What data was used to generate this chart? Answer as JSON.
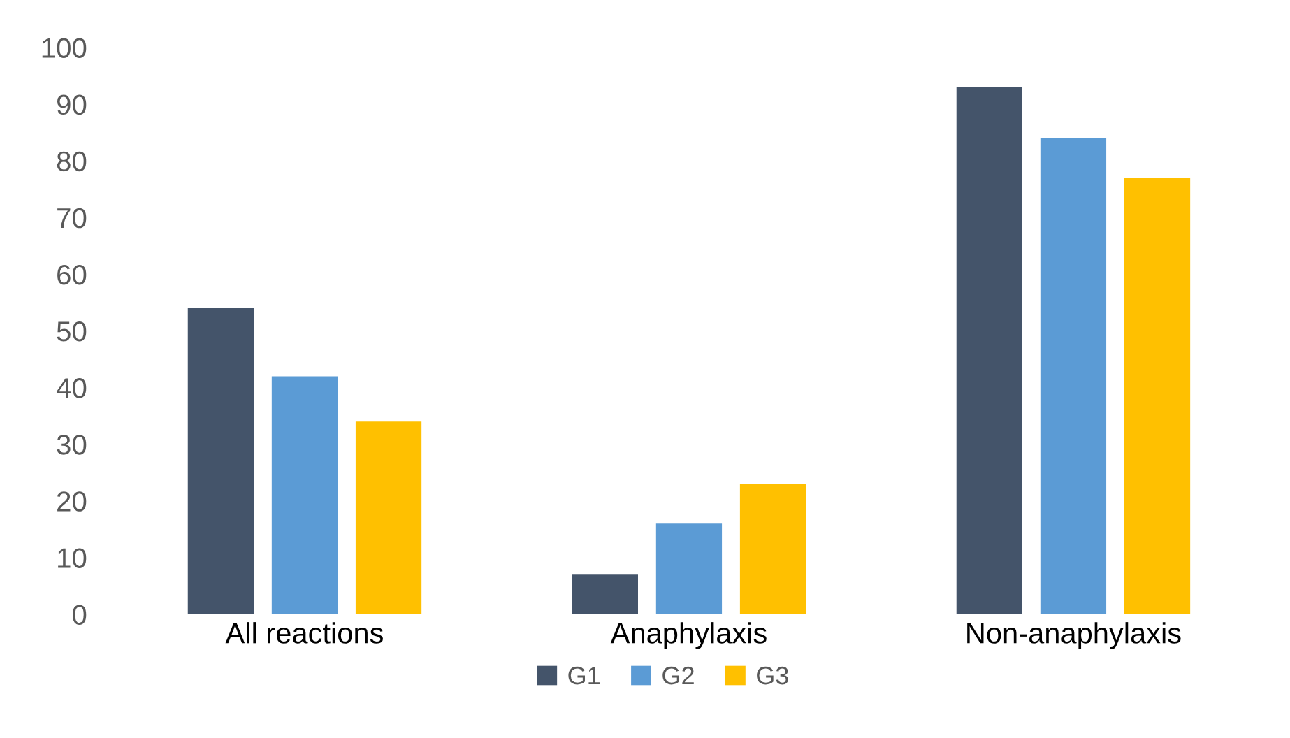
{
  "chart_data": {
    "type": "bar",
    "categories": [
      "All reactions",
      "Anaphylaxis",
      "Non-anaphylaxis"
    ],
    "series": [
      {
        "name": "G1",
        "color": "#44546a",
        "values": [
          54,
          7,
          93
        ]
      },
      {
        "name": "G2",
        "color": "#5b9bd5",
        "values": [
          42,
          16,
          84
        ]
      },
      {
        "name": "G3",
        "color": "#ffc000",
        "values": [
          34,
          23,
          77
        ]
      }
    ],
    "ylim": [
      0,
      100
    ],
    "yticks": [
      0,
      10,
      20,
      30,
      40,
      50,
      60,
      70,
      80,
      90,
      100
    ],
    "legend": "bottom"
  }
}
